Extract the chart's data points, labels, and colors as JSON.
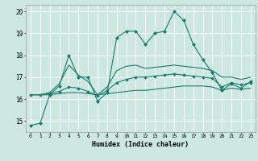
{
  "title": "",
  "xlabel": "Humidex (Indice chaleur)",
  "ylabel": "",
  "background_color": "#cce8e0",
  "grid_color": "#ffffff",
  "line_color": "#1a7a6e",
  "xlim": [
    -0.5,
    23.5
  ],
  "ylim": [
    14.5,
    20.3
  ],
  "xticks": [
    0,
    1,
    2,
    3,
    4,
    5,
    6,
    7,
    8,
    9,
    10,
    11,
    12,
    13,
    14,
    15,
    16,
    17,
    18,
    19,
    20,
    21,
    22,
    23
  ],
  "yticks": [
    15,
    16,
    17,
    18,
    19,
    20
  ],
  "series": [
    {
      "x": [
        0,
        1,
        2,
        3,
        4,
        5,
        6,
        7,
        8,
        9,
        10,
        11,
        12,
        13,
        14,
        15,
        16,
        17,
        18,
        19,
        20,
        21,
        22,
        23
      ],
      "y": [
        14.8,
        14.9,
        16.2,
        16.6,
        18.0,
        17.0,
        17.0,
        15.9,
        16.3,
        18.8,
        19.1,
        19.1,
        18.5,
        19.0,
        19.1,
        20.0,
        19.6,
        18.5,
        17.8,
        17.2,
        16.4,
        16.7,
        16.5,
        16.8
      ],
      "marker": "D",
      "markersize": 2.0,
      "linewidth": 0.8,
      "linestyle": "-"
    },
    {
      "x": [
        0,
        1,
        2,
        3,
        4,
        5,
        6,
        7,
        8,
        9,
        10,
        11,
        12,
        13,
        14,
        15,
        16,
        17,
        18,
        19,
        20,
        21,
        22,
        23
      ],
      "y": [
        16.2,
        16.2,
        16.2,
        16.25,
        16.3,
        16.3,
        16.25,
        16.2,
        16.25,
        16.3,
        16.35,
        16.4,
        16.4,
        16.45,
        16.5,
        16.55,
        16.6,
        16.6,
        16.6,
        16.55,
        16.4,
        16.5,
        16.45,
        16.5
      ],
      "marker": null,
      "markersize": 0,
      "linewidth": 0.8,
      "linestyle": "-"
    },
    {
      "x": [
        0,
        1,
        2,
        3,
        4,
        5,
        6,
        7,
        8,
        9,
        10,
        11,
        12,
        13,
        14,
        15,
        16,
        17,
        18,
        19,
        20,
        21,
        22,
        23
      ],
      "y": [
        16.2,
        16.2,
        16.3,
        16.7,
        17.55,
        17.1,
        16.8,
        16.2,
        16.55,
        17.3,
        17.5,
        17.55,
        17.4,
        17.45,
        17.5,
        17.55,
        17.5,
        17.45,
        17.4,
        17.3,
        17.0,
        17.0,
        16.9,
        17.0
      ],
      "marker": null,
      "markersize": 0,
      "linewidth": 0.8,
      "linestyle": "-"
    },
    {
      "x": [
        0,
        1,
        2,
        3,
        4,
        5,
        6,
        7,
        8,
        9,
        10,
        11,
        12,
        13,
        14,
        15,
        16,
        17,
        18,
        19,
        20,
        21,
        22,
        23
      ],
      "y": [
        16.2,
        16.2,
        16.25,
        16.35,
        16.55,
        16.5,
        16.35,
        16.15,
        16.4,
        16.75,
        16.9,
        17.0,
        17.0,
        17.05,
        17.1,
        17.15,
        17.1,
        17.05,
        17.0,
        16.95,
        16.55,
        16.75,
        16.65,
        16.75
      ],
      "marker": "D",
      "markersize": 1.8,
      "linewidth": 0.8,
      "linestyle": "-"
    }
  ]
}
